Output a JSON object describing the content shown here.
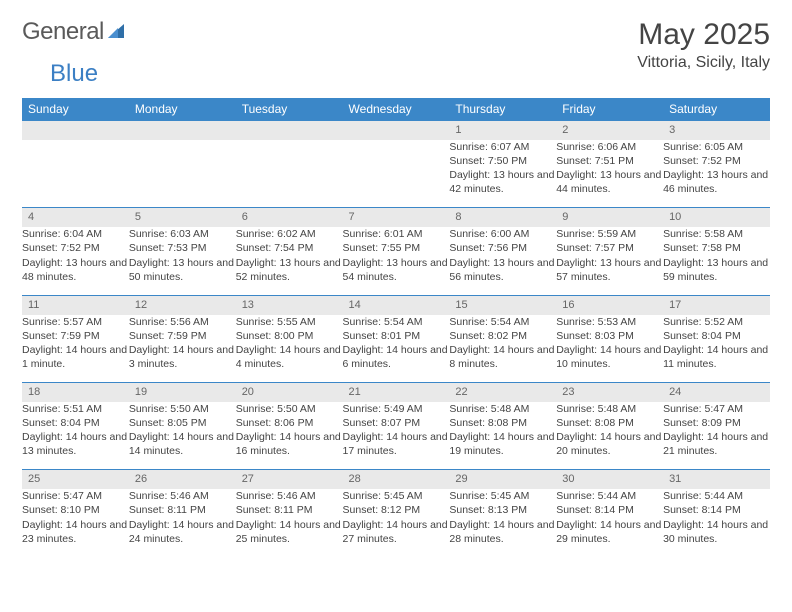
{
  "logo": {
    "text1": "General",
    "text2": "Blue"
  },
  "title": "May 2025",
  "location": "Vittoria, Sicily, Italy",
  "colors": {
    "header_bg": "#3b87c8",
    "header_text": "#ffffff",
    "daynum_bg": "#e9e9e9",
    "row_border": "#3b87c8",
    "body_text": "#444444",
    "logo_gray": "#5a5a5a",
    "logo_blue": "#3b7fc4"
  },
  "day_headers": [
    "Sunday",
    "Monday",
    "Tuesday",
    "Wednesday",
    "Thursday",
    "Friday",
    "Saturday"
  ],
  "weeks": [
    [
      null,
      null,
      null,
      null,
      {
        "n": "1",
        "sr": "6:07 AM",
        "ss": "7:50 PM",
        "dl": "13 hours and 42 minutes."
      },
      {
        "n": "2",
        "sr": "6:06 AM",
        "ss": "7:51 PM",
        "dl": "13 hours and 44 minutes."
      },
      {
        "n": "3",
        "sr": "6:05 AM",
        "ss": "7:52 PM",
        "dl": "13 hours and 46 minutes."
      }
    ],
    [
      {
        "n": "4",
        "sr": "6:04 AM",
        "ss": "7:52 PM",
        "dl": "13 hours and 48 minutes."
      },
      {
        "n": "5",
        "sr": "6:03 AM",
        "ss": "7:53 PM",
        "dl": "13 hours and 50 minutes."
      },
      {
        "n": "6",
        "sr": "6:02 AM",
        "ss": "7:54 PM",
        "dl": "13 hours and 52 minutes."
      },
      {
        "n": "7",
        "sr": "6:01 AM",
        "ss": "7:55 PM",
        "dl": "13 hours and 54 minutes."
      },
      {
        "n": "8",
        "sr": "6:00 AM",
        "ss": "7:56 PM",
        "dl": "13 hours and 56 minutes."
      },
      {
        "n": "9",
        "sr": "5:59 AM",
        "ss": "7:57 PM",
        "dl": "13 hours and 57 minutes."
      },
      {
        "n": "10",
        "sr": "5:58 AM",
        "ss": "7:58 PM",
        "dl": "13 hours and 59 minutes."
      }
    ],
    [
      {
        "n": "11",
        "sr": "5:57 AM",
        "ss": "7:59 PM",
        "dl": "14 hours and 1 minute."
      },
      {
        "n": "12",
        "sr": "5:56 AM",
        "ss": "7:59 PM",
        "dl": "14 hours and 3 minutes."
      },
      {
        "n": "13",
        "sr": "5:55 AM",
        "ss": "8:00 PM",
        "dl": "14 hours and 4 minutes."
      },
      {
        "n": "14",
        "sr": "5:54 AM",
        "ss": "8:01 PM",
        "dl": "14 hours and 6 minutes."
      },
      {
        "n": "15",
        "sr": "5:54 AM",
        "ss": "8:02 PM",
        "dl": "14 hours and 8 minutes."
      },
      {
        "n": "16",
        "sr": "5:53 AM",
        "ss": "8:03 PM",
        "dl": "14 hours and 10 minutes."
      },
      {
        "n": "17",
        "sr": "5:52 AM",
        "ss": "8:04 PM",
        "dl": "14 hours and 11 minutes."
      }
    ],
    [
      {
        "n": "18",
        "sr": "5:51 AM",
        "ss": "8:04 PM",
        "dl": "14 hours and 13 minutes."
      },
      {
        "n": "19",
        "sr": "5:50 AM",
        "ss": "8:05 PM",
        "dl": "14 hours and 14 minutes."
      },
      {
        "n": "20",
        "sr": "5:50 AM",
        "ss": "8:06 PM",
        "dl": "14 hours and 16 minutes."
      },
      {
        "n": "21",
        "sr": "5:49 AM",
        "ss": "8:07 PM",
        "dl": "14 hours and 17 minutes."
      },
      {
        "n": "22",
        "sr": "5:48 AM",
        "ss": "8:08 PM",
        "dl": "14 hours and 19 minutes."
      },
      {
        "n": "23",
        "sr": "5:48 AM",
        "ss": "8:08 PM",
        "dl": "14 hours and 20 minutes."
      },
      {
        "n": "24",
        "sr": "5:47 AM",
        "ss": "8:09 PM",
        "dl": "14 hours and 21 minutes."
      }
    ],
    [
      {
        "n": "25",
        "sr": "5:47 AM",
        "ss": "8:10 PM",
        "dl": "14 hours and 23 minutes."
      },
      {
        "n": "26",
        "sr": "5:46 AM",
        "ss": "8:11 PM",
        "dl": "14 hours and 24 minutes."
      },
      {
        "n": "27",
        "sr": "5:46 AM",
        "ss": "8:11 PM",
        "dl": "14 hours and 25 minutes."
      },
      {
        "n": "28",
        "sr": "5:45 AM",
        "ss": "8:12 PM",
        "dl": "14 hours and 27 minutes."
      },
      {
        "n": "29",
        "sr": "5:45 AM",
        "ss": "8:13 PM",
        "dl": "14 hours and 28 minutes."
      },
      {
        "n": "30",
        "sr": "5:44 AM",
        "ss": "8:14 PM",
        "dl": "14 hours and 29 minutes."
      },
      {
        "n": "31",
        "sr": "5:44 AM",
        "ss": "8:14 PM",
        "dl": "14 hours and 30 minutes."
      }
    ]
  ],
  "labels": {
    "sunrise": "Sunrise: ",
    "sunset": "Sunset: ",
    "daylight": "Daylight: "
  }
}
